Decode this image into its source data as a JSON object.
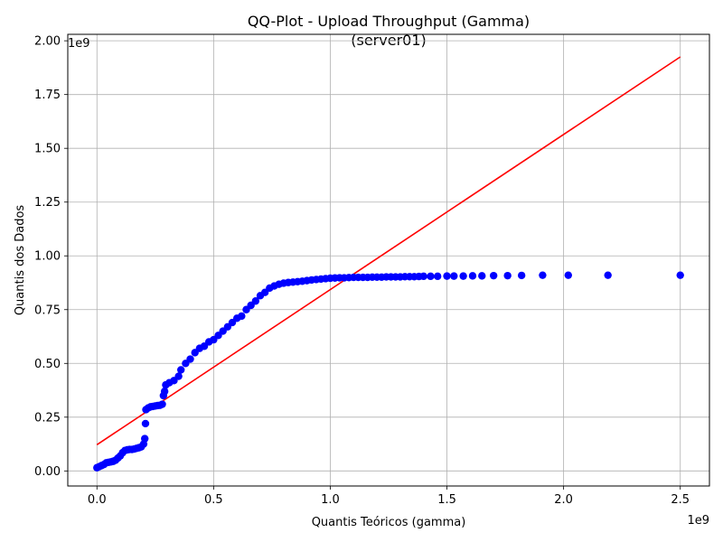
{
  "chart_data": {
    "type": "scatter",
    "title_line1": "QQ-Plot - Upload Throughput (Gamma)",
    "title_line2": "(server01)",
    "xlabel": "Quantis Teóricos (gamma)",
    "ylabel": "Quantis dos Dados",
    "x_offset_label": "1e9",
    "y_offset_label": "1e9",
    "xlim": [
      -0.125,
      2.625
    ],
    "ylim": [
      -0.07,
      2.03
    ],
    "grid": true,
    "point_color": "#0000ff",
    "line_color": "#ff0000",
    "x_ticks": [
      {
        "value": 0.0,
        "label": "0.0"
      },
      {
        "value": 0.5,
        "label": "0.5"
      },
      {
        "value": 1.0,
        "label": "1.0"
      },
      {
        "value": 1.5,
        "label": "1.5"
      },
      {
        "value": 2.0,
        "label": "2.0"
      },
      {
        "value": 2.5,
        "label": "2.5"
      }
    ],
    "y_ticks": [
      {
        "value": 0.0,
        "label": "0.00"
      },
      {
        "value": 0.25,
        "label": "0.25"
      },
      {
        "value": 0.5,
        "label": "0.50"
      },
      {
        "value": 0.75,
        "label": "0.75"
      },
      {
        "value": 1.0,
        "label": "1.00"
      },
      {
        "value": 1.25,
        "label": "1.25"
      },
      {
        "value": 1.5,
        "label": "1.50"
      },
      {
        "value": 1.75,
        "label": "1.75"
      },
      {
        "value": 2.0,
        "label": "2.00"
      }
    ],
    "reference_line": {
      "x": [
        0.0,
        2.5
      ],
      "y": [
        0.122,
        1.925
      ]
    },
    "points": [
      [
        0.0,
        0.015
      ],
      [
        0.01,
        0.02
      ],
      [
        0.02,
        0.025
      ],
      [
        0.03,
        0.03
      ],
      [
        0.04,
        0.038
      ],
      [
        0.05,
        0.04
      ],
      [
        0.06,
        0.042
      ],
      [
        0.07,
        0.045
      ],
      [
        0.08,
        0.05
      ],
      [
        0.09,
        0.06
      ],
      [
        0.1,
        0.07
      ],
      [
        0.11,
        0.085
      ],
      [
        0.12,
        0.095
      ],
      [
        0.13,
        0.098
      ],
      [
        0.14,
        0.1
      ],
      [
        0.15,
        0.1
      ],
      [
        0.16,
        0.102
      ],
      [
        0.17,
        0.105
      ],
      [
        0.18,
        0.108
      ],
      [
        0.19,
        0.112
      ],
      [
        0.2,
        0.125
      ],
      [
        0.205,
        0.15
      ],
      [
        0.208,
        0.22
      ],
      [
        0.21,
        0.285
      ],
      [
        0.22,
        0.293
      ],
      [
        0.23,
        0.298
      ],
      [
        0.24,
        0.3
      ],
      [
        0.25,
        0.302
      ],
      [
        0.26,
        0.304
      ],
      [
        0.27,
        0.305
      ],
      [
        0.28,
        0.31
      ],
      [
        0.285,
        0.35
      ],
      [
        0.29,
        0.37
      ],
      [
        0.295,
        0.4
      ],
      [
        0.31,
        0.41
      ],
      [
        0.33,
        0.42
      ],
      [
        0.35,
        0.44
      ],
      [
        0.36,
        0.47
      ],
      [
        0.38,
        0.5
      ],
      [
        0.4,
        0.52
      ],
      [
        0.42,
        0.55
      ],
      [
        0.44,
        0.57
      ],
      [
        0.46,
        0.58
      ],
      [
        0.48,
        0.6
      ],
      [
        0.5,
        0.61
      ],
      [
        0.52,
        0.63
      ],
      [
        0.54,
        0.65
      ],
      [
        0.56,
        0.67
      ],
      [
        0.58,
        0.69
      ],
      [
        0.6,
        0.71
      ],
      [
        0.62,
        0.72
      ],
      [
        0.64,
        0.75
      ],
      [
        0.66,
        0.77
      ],
      [
        0.68,
        0.79
      ],
      [
        0.7,
        0.815
      ],
      [
        0.72,
        0.83
      ],
      [
        0.74,
        0.85
      ],
      [
        0.76,
        0.86
      ],
      [
        0.78,
        0.868
      ],
      [
        0.8,
        0.873
      ],
      [
        0.82,
        0.876
      ],
      [
        0.84,
        0.878
      ],
      [
        0.86,
        0.88
      ],
      [
        0.88,
        0.882
      ],
      [
        0.9,
        0.885
      ],
      [
        0.92,
        0.888
      ],
      [
        0.94,
        0.89
      ],
      [
        0.96,
        0.892
      ],
      [
        0.98,
        0.894
      ],
      [
        1.0,
        0.896
      ],
      [
        1.02,
        0.897
      ],
      [
        1.04,
        0.898
      ],
      [
        1.06,
        0.898
      ],
      [
        1.08,
        0.899
      ],
      [
        1.1,
        0.9
      ],
      [
        1.12,
        0.9
      ],
      [
        1.14,
        0.9
      ],
      [
        1.16,
        0.9
      ],
      [
        1.18,
        0.901
      ],
      [
        1.2,
        0.901
      ],
      [
        1.22,
        0.901
      ],
      [
        1.24,
        0.902
      ],
      [
        1.26,
        0.902
      ],
      [
        1.28,
        0.902
      ],
      [
        1.3,
        0.902
      ],
      [
        1.32,
        0.903
      ],
      [
        1.34,
        0.903
      ],
      [
        1.36,
        0.903
      ],
      [
        1.38,
        0.904
      ],
      [
        1.4,
        0.905
      ],
      [
        1.43,
        0.905
      ],
      [
        1.46,
        0.905
      ],
      [
        1.5,
        0.906
      ],
      [
        1.53,
        0.906
      ],
      [
        1.57,
        0.906
      ],
      [
        1.61,
        0.907
      ],
      [
        1.65,
        0.907
      ],
      [
        1.7,
        0.908
      ],
      [
        1.76,
        0.908
      ],
      [
        1.82,
        0.909
      ],
      [
        1.91,
        0.91
      ],
      [
        2.02,
        0.91
      ],
      [
        2.19,
        0.91
      ],
      [
        2.5,
        0.91
      ]
    ]
  }
}
